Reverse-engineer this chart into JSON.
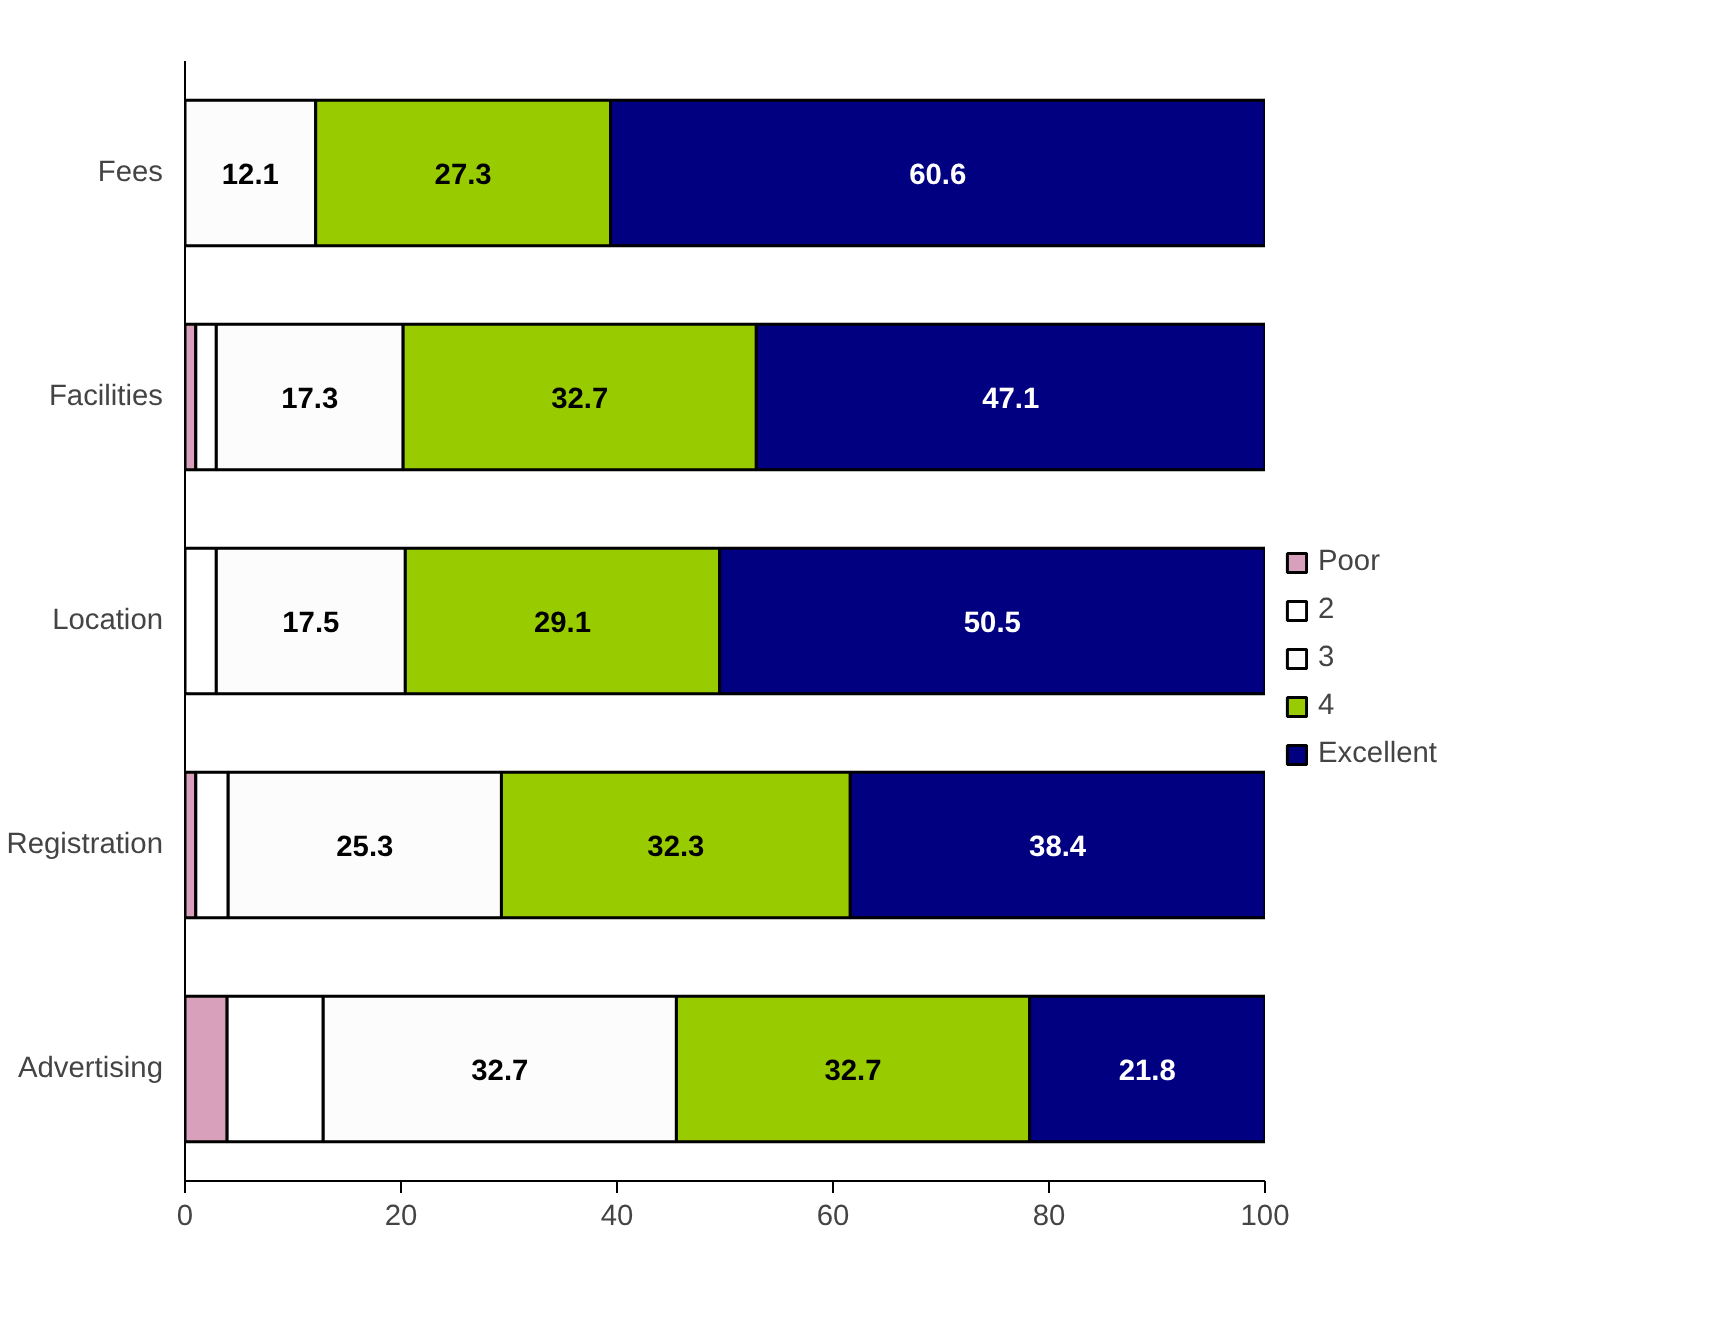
{
  "chart_data": {
    "type": "bar",
    "orientation": "horizontal",
    "stacked": true,
    "categories": [
      "Fees",
      "Facilities",
      "Location",
      "Registration",
      "Advertising"
    ],
    "series": [
      {
        "name": "Poor",
        "color": "#d9a0bc",
        "values": [
          0,
          1.0,
          0,
          1.0,
          3.9
        ]
      },
      {
        "name": "2",
        "color": "#ffffff",
        "values": [
          0,
          1.9,
          2.9,
          3.0,
          8.9
        ]
      },
      {
        "name": "3",
        "color": "#fcfcfc",
        "values": [
          12.1,
          17.3,
          17.5,
          25.3,
          32.7
        ],
        "value_labels": [
          "12.1",
          "17.3",
          "17.5",
          "25.3",
          "32.7"
        ]
      },
      {
        "name": "4",
        "color": "#99cc00",
        "values": [
          27.3,
          32.7,
          29.1,
          32.3,
          32.7
        ],
        "value_labels": [
          "27.3",
          "32.7",
          "29.1",
          "32.3",
          "32.7"
        ]
      },
      {
        "name": "Excellent",
        "color": "#000080",
        "values": [
          60.6,
          47.1,
          50.5,
          38.4,
          21.8
        ],
        "value_labels": [
          "60.6",
          "47.1",
          "50.5",
          "38.4",
          "21.8"
        ]
      }
    ],
    "xlim": [
      0,
      100
    ],
    "xticks": [
      0,
      20,
      40,
      60,
      80,
      100
    ],
    "grid": false,
    "legend": "right"
  }
}
